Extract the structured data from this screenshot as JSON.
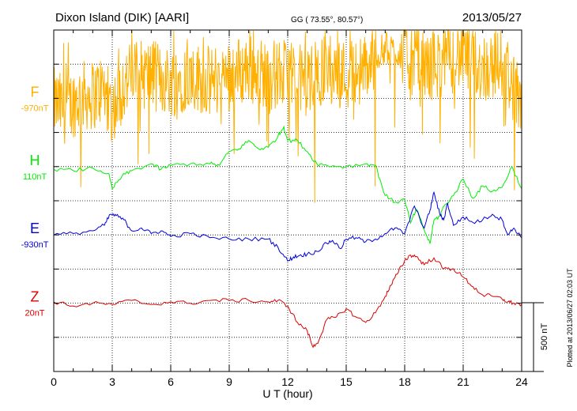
{
  "chart_data": {
    "type": "line",
    "title": "Dixon Island (DIK)  [AARI]",
    "subtitle": "GG ( 73.55°,  80.57°)",
    "date": "2013/05/27",
    "xlabel": "U T (hour)",
    "xlim": [
      0,
      24
    ],
    "x_ticks": [
      "0",
      "3",
      "6",
      "9",
      "12",
      "15",
      "18",
      "21",
      "24"
    ],
    "grid": "dotted, every 3 hours and every 1/2 channel spacing",
    "scale_label": "500 nT",
    "scale_nT": 500,
    "plot_note": "Plotted at 2013/06/27 02:03 UT",
    "series": [
      {
        "name": "F",
        "baseline_label": "-970nT",
        "color": "#FFB000",
        "noisy": true,
        "x": [
          0,
          0.5,
          1,
          1.5,
          2,
          2.5,
          3,
          3.5,
          4,
          5,
          6,
          7,
          8,
          9,
          10,
          11,
          12,
          13,
          14,
          15,
          16,
          17,
          18,
          19,
          20,
          21,
          22,
          23,
          23.5,
          24
        ],
        "values": [
          -1000,
          -1050,
          -1000,
          -950,
          -950,
          -900,
          -1050,
          -900,
          -800,
          -800,
          -850,
          -800,
          -850,
          -800,
          -750,
          -800,
          -800,
          -850,
          -750,
          -800,
          -750,
          -600,
          -650,
          -750,
          -700,
          -650,
          -750,
          -700,
          -850,
          -1150
        ]
      },
      {
        "name": "H",
        "baseline_label": "110nT",
        "color": "#00EE00",
        "x": [
          0,
          1,
          2,
          2.8,
          3,
          3.5,
          4,
          5,
          5.5,
          6,
          7,
          8,
          8.5,
          9,
          9.5,
          10,
          10.5,
          11,
          11.5,
          11.8,
          12,
          12.5,
          13,
          13.5,
          14,
          15,
          16,
          16.5,
          17,
          17.5,
          18,
          18.3,
          18.6,
          19,
          19.3,
          19.5,
          19.8,
          20,
          20.5,
          21,
          21.5,
          22,
          22.5,
          23,
          23.5,
          24
        ],
        "values": [
          90,
          80,
          100,
          60,
          -50,
          40,
          80,
          130,
          90,
          120,
          130,
          130,
          120,
          220,
          240,
          300,
          240,
          250,
          330,
          400,
          300,
          300,
          220,
          130,
          120,
          110,
          130,
          120,
          -100,
          -150,
          -130,
          -300,
          -200,
          -350,
          -450,
          -280,
          -250,
          -180,
          -100,
          20,
          -120,
          -30,
          -70,
          -40,
          110,
          -50
        ]
      },
      {
        "name": "E",
        "baseline_label": "-930nT",
        "color": "#0000DD",
        "x": [
          0,
          1,
          2,
          2.6,
          2.9,
          3.2,
          3.6,
          4,
          4.5,
          5,
          5.5,
          6,
          7,
          8,
          9,
          10,
          11,
          11.5,
          12,
          12.3,
          12.6,
          13,
          13.5,
          14,
          14.3,
          14.7,
          15,
          15.5,
          16,
          16.5,
          17,
          17.5,
          18,
          18.5,
          19,
          19.3,
          19.5,
          19.8,
          20,
          20.2,
          20.5,
          21,
          21.5,
          22,
          22.5,
          23,
          23.3,
          23.6,
          24
        ],
        "values": [
          -930,
          -920,
          -900,
          -860,
          -780,
          -790,
          -820,
          -900,
          -880,
          -920,
          -900,
          -940,
          -920,
          -950,
          -960,
          -960,
          -960,
          -1020,
          -1120,
          -1090,
          -1080,
          -1070,
          -1050,
          -990,
          -970,
          -1030,
          -960,
          -950,
          -980,
          -960,
          -920,
          -880,
          -920,
          -720,
          -880,
          -750,
          -620,
          -780,
          -820,
          -700,
          -860,
          -800,
          -840,
          -820,
          -780,
          -820,
          -930,
          -880,
          -950
        ]
      },
      {
        "name": "Z",
        "baseline_label": "20nT",
        "color": "#DD0000",
        "x": [
          0,
          1,
          2,
          3,
          4,
          5,
          6,
          7,
          8,
          9,
          10,
          11,
          11.5,
          12,
          12.5,
          13,
          13.3,
          13.6,
          14,
          14.5,
          15,
          15.5,
          16,
          16.5,
          17,
          17.3,
          17.6,
          18,
          18.3,
          18.6,
          19,
          19.5,
          20,
          20.5,
          21,
          21.5,
          22,
          22.5,
          23,
          23.3,
          23.6,
          24
        ],
        "values": [
          30,
          0,
          20,
          10,
          40,
          10,
          30,
          20,
          40,
          40,
          40,
          30,
          40,
          0,
          -120,
          -180,
          -300,
          -250,
          -100,
          -80,
          -20,
          -80,
          -120,
          -50,
          70,
          150,
          230,
          330,
          370,
          360,
          300,
          350,
          270,
          270,
          210,
          140,
          80,
          70,
          50,
          30,
          20,
          10
        ]
      }
    ]
  }
}
